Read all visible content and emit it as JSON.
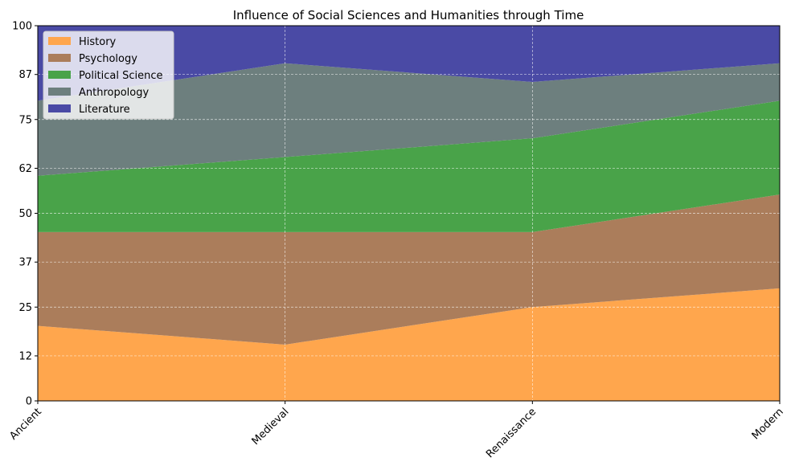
{
  "chart_data": {
    "type": "area",
    "stacked": true,
    "title": "Influence of Social Sciences and Humanities through Time",
    "xlabel": "",
    "ylabel": "",
    "categories": [
      "Ancient",
      "Medieval",
      "Renaissance",
      "Modern"
    ],
    "ylim": [
      0,
      100
    ],
    "yticks": [
      0,
      12,
      25,
      37,
      50,
      62,
      75,
      87,
      100
    ],
    "grid": true,
    "legend_position": "upper-left",
    "series": [
      {
        "name": "History",
        "values": [
          20,
          15,
          25,
          30
        ],
        "color": "#ffa64d"
      },
      {
        "name": "Psychology",
        "values": [
          25,
          30,
          20,
          25
        ],
        "color": "#ab7d5b"
      },
      {
        "name": "Political Science",
        "values": [
          15,
          20,
          25,
          25
        ],
        "color": "#49a349"
      },
      {
        "name": "Anthropology",
        "values": [
          20,
          25,
          15,
          10
        ],
        "color": "#6d7f7e"
      },
      {
        "name": "Literature",
        "values": [
          20,
          10,
          15,
          10
        ],
        "color": "#4a4aa5"
      }
    ]
  }
}
